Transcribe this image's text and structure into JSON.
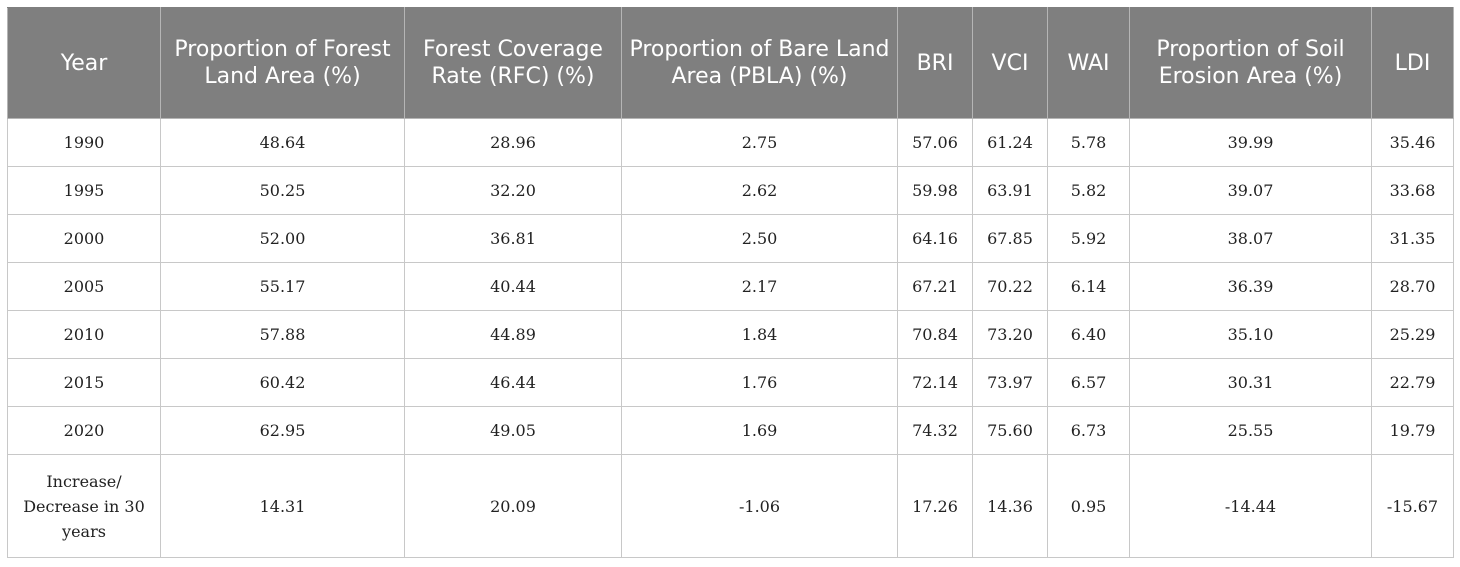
{
  "table": {
    "headers": [
      "Year",
      "Proportion of Forest Land Area (%)",
      "Forest Coverage Rate (RFC) (%)",
      "Proportion of Bare Land Area (PBLA) (%)",
      "BRI",
      "VCI",
      "WAI",
      "Proportion of Soil Erosion Area (%)",
      "LDI"
    ],
    "rows": [
      [
        "1990",
        "48.64",
        "28.96",
        "2.75",
        "57.06",
        "61.24",
        "5.78",
        "39.99",
        "35.46"
      ],
      [
        "1995",
        "50.25",
        "32.20",
        "2.62",
        "59.98",
        "63.91",
        "5.82",
        "39.07",
        "33.68"
      ],
      [
        "2000",
        "52.00",
        "36.81",
        "2.50",
        "64.16",
        "67.85",
        "5.92",
        "38.07",
        "31.35"
      ],
      [
        "2005",
        "55.17",
        "40.44",
        "2.17",
        "67.21",
        "70.22",
        "6.14",
        "36.39",
        "28.70"
      ],
      [
        "2010",
        "57.88",
        "44.89",
        "1.84",
        "70.84",
        "73.20",
        "6.40",
        "35.10",
        "25.29"
      ],
      [
        "2015",
        "60.42",
        "46.44",
        "1.76",
        "72.14",
        "73.97",
        "6.57",
        "30.31",
        "22.79"
      ],
      [
        "2020",
        "62.95",
        "49.05",
        "1.69",
        "74.32",
        "75.60",
        "6.73",
        "25.55",
        "19.79"
      ],
      [
        "Increase/ Decrease in 30 years",
        "14.31",
        "20.09",
        "-1.06",
        "17.26",
        "14.36",
        "0.95",
        "-14.44",
        "-15.67"
      ]
    ]
  }
}
